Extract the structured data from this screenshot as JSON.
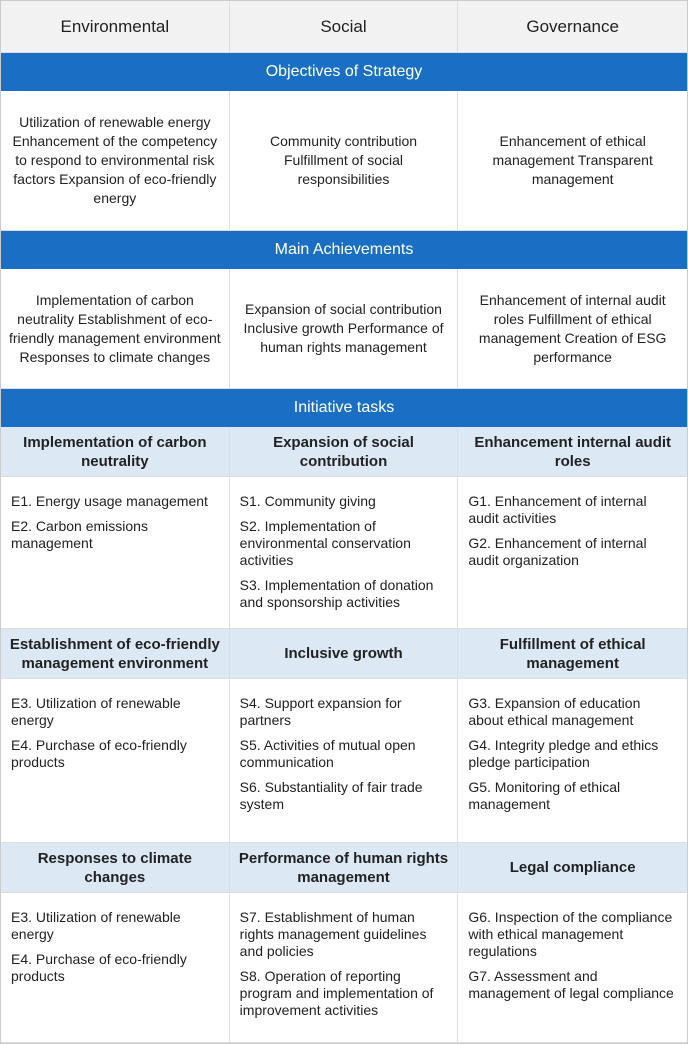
{
  "header": [
    "Environmental",
    "Social",
    "Governance"
  ],
  "sections": [
    {
      "title": "Objectives of Strategy",
      "cells": [
        "Utilization of renewable energy Enhancement of the competency to respond to environmental risk factors Expansion of eco-friendly energy",
        "Community contribution Fulfillment of social responsibilities",
        "Enhancement of ethical management Transparent management"
      ]
    },
    {
      "title": "Main Achievements",
      "cells": [
        "Implementation of carbon neutrality Establishment of eco-friendly management environment Responses to climate changes",
        "Expansion of social contribution Inclusive growth Performance of human rights management",
        "Enhancement of internal audit roles Fulfillment of ethical management Creation of ESG performance"
      ]
    }
  ],
  "initiative": {
    "title": "Initiative tasks",
    "groups": [
      {
        "headings": [
          "Implementation of carbon neutrality",
          "Expansion of social contribution",
          "Enhancement internal audit roles"
        ],
        "tasks": [
          [
            "E1. Energy usage management",
            "E2. Carbon emissions management"
          ],
          [
            "S1. Community giving",
            "S2. Implementation of environmental conservation activities",
            "S3. Implementation of donation and sponsorship activities"
          ],
          [
            "G1. Enhancement of internal audit activities",
            "G2. Enhancement of internal audit organization"
          ]
        ]
      },
      {
        "headings": [
          "Establishment of eco-friendly management environment",
          "Inclusive growth",
          "Fulfillment of ethical management"
        ],
        "tasks": [
          [
            "E3. Utilization of renewable energy",
            "E4. Purchase of eco-friendly products"
          ],
          [
            "S4. Support expansion for partners",
            "S5. Activities of mutual open communication",
            "S6. Substantiality of fair trade system"
          ],
          [
            "G3. Expansion of education about ethical management",
            "G4. Integrity pledge and ethics pledge participation",
            "G5. Monitoring of ethical management"
          ]
        ]
      },
      {
        "headings": [
          "Responses to climate changes",
          "Performance of human rights management",
          "Legal compliance"
        ],
        "tasks": [
          [
            "E3. Utilization of renewable energy",
            "E4. Purchase of eco-friendly products"
          ],
          [
            "S7. Establishment of human rights management guidelines and policies",
            "S8. Operation of reporting program and implementation of improvement activities"
          ],
          [
            "G6. Inspection of the compliance with ethical management regulations",
            "G7. Assessment and management of legal compliance"
          ]
        ]
      }
    ]
  }
}
